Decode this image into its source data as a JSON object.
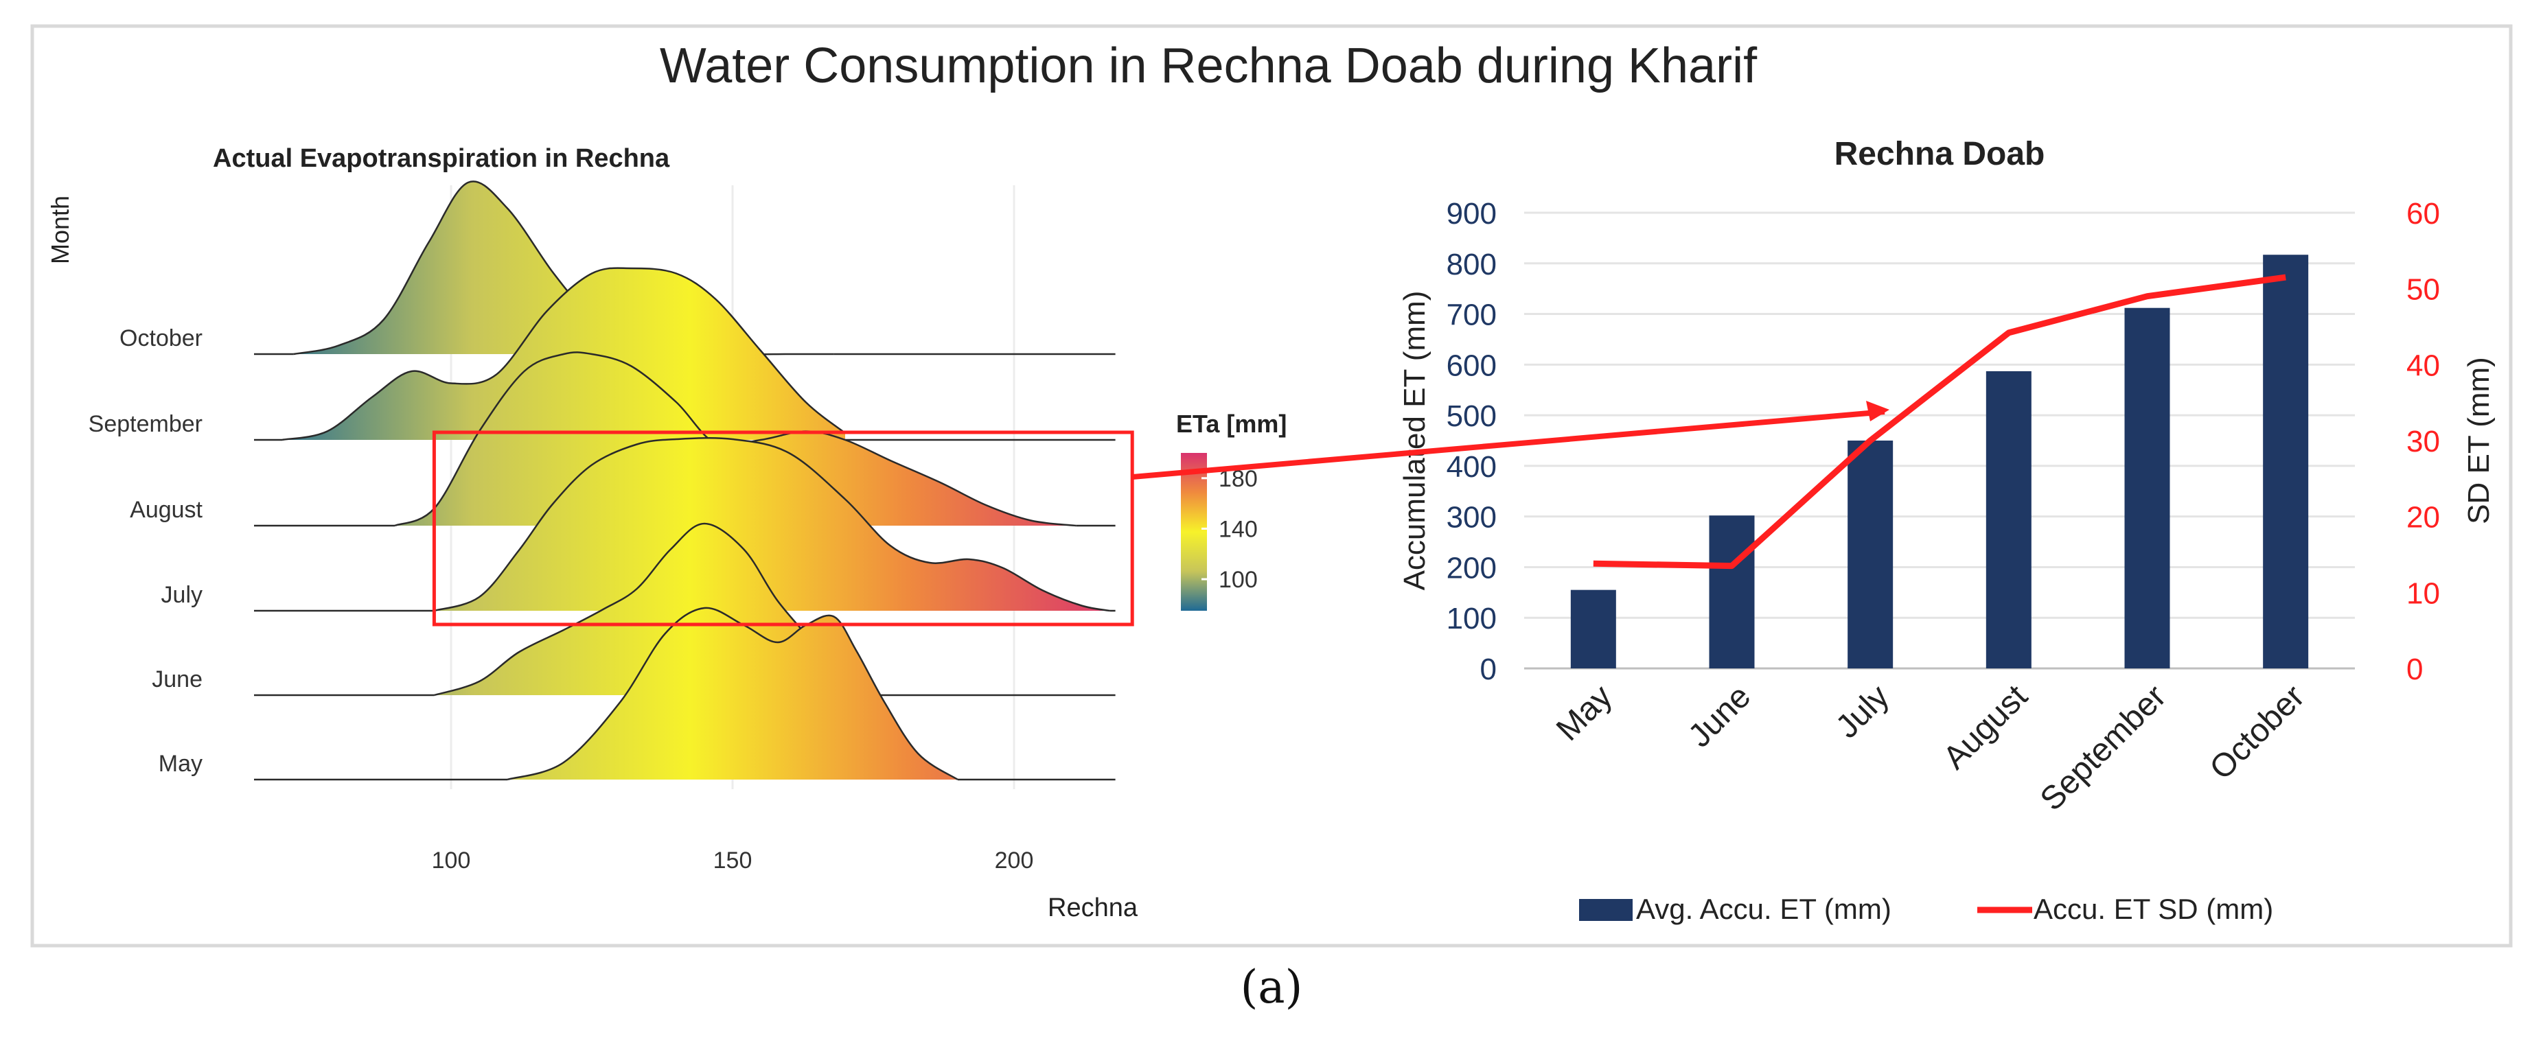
{
  "figure_title": "Water Consumption in Rechna Doab during Kharif",
  "caption": "(a)",
  "chart_data": [
    {
      "type": "ridgeline",
      "title": "Actual Evapotranspiration in Rechna",
      "xlabel": "Rechna",
      "ylabel": "Month",
      "xlim": [
        65,
        220
      ],
      "x_ticks": [
        100,
        150,
        200
      ],
      "categories": [
        "May",
        "June",
        "July",
        "August",
        "September",
        "October"
      ],
      "series": [
        {
          "name": "May",
          "x": [
            110,
            120,
            130,
            138,
            145,
            152,
            158,
            163,
            168,
            172,
            177,
            183,
            190
          ],
          "y": [
            0,
            0.1,
            0.45,
            0.85,
            1.0,
            0.9,
            0.8,
            0.9,
            0.95,
            0.75,
            0.45,
            0.15,
            0
          ]
        },
        {
          "name": "June",
          "x": [
            97,
            105,
            112,
            120,
            127,
            133,
            139,
            145,
            152,
            158,
            165,
            170,
            175
          ],
          "y": [
            0,
            0.08,
            0.25,
            0.38,
            0.5,
            0.62,
            0.85,
            1.0,
            0.85,
            0.55,
            0.28,
            0.07,
            0
          ]
        },
        {
          "name": "July",
          "x": [
            97,
            105,
            112,
            118,
            125,
            133,
            140,
            150,
            160,
            170,
            178,
            185,
            192,
            198,
            205,
            212,
            217
          ],
          "y": [
            0,
            0.08,
            0.35,
            0.62,
            0.85,
            0.97,
            1.0,
            1.0,
            0.92,
            0.65,
            0.38,
            0.28,
            0.3,
            0.25,
            0.12,
            0.03,
            0
          ]
        },
        {
          "name": "August",
          "x": [
            90,
            97,
            105,
            113,
            120,
            125,
            132,
            140,
            147,
            155,
            163,
            170,
            178,
            187,
            195,
            203,
            211
          ],
          "y": [
            0,
            0.1,
            0.55,
            0.9,
            1.0,
            1.0,
            0.93,
            0.72,
            0.48,
            0.5,
            0.55,
            0.5,
            0.38,
            0.25,
            0.12,
            0.03,
            0
          ]
        },
        {
          "name": "September",
          "x": [
            70,
            78,
            86,
            93,
            100,
            108,
            117,
            125,
            132,
            140,
            147,
            155,
            163,
            170
          ],
          "y": [
            0,
            0.05,
            0.25,
            0.4,
            0.33,
            0.38,
            0.75,
            0.97,
            1.0,
            0.97,
            0.82,
            0.52,
            0.22,
            0.04
          ]
        },
        {
          "name": "October",
          "x": [
            72,
            80,
            88,
            96,
            103,
            110,
            118,
            124,
            130,
            137,
            145,
            152,
            160,
            168
          ],
          "y": [
            0,
            0.05,
            0.2,
            0.65,
            1.0,
            0.85,
            0.48,
            0.25,
            0.12,
            0.06,
            0.02,
            0,
            0,
            0
          ]
        }
      ],
      "legend": {
        "title": "ETa [mm]",
        "ticks": [
          100,
          140,
          180
        ],
        "range": [
          75,
          200
        ],
        "colors": [
          "#1f6a95",
          "#c7c55a",
          "#f7f22a",
          "#ef8a3e",
          "#d9336e"
        ]
      },
      "highlight": {
        "x_range": [
          97,
          221
        ],
        "categories": [
          "August",
          "July"
        ],
        "color": "#ff2222"
      }
    },
    {
      "type": "bar+line",
      "title": "Rechna Doab",
      "categories": [
        "May",
        "June",
        "July",
        "August",
        "September",
        "October"
      ],
      "series": [
        {
          "name": "Avg. Accu. ET (mm)",
          "type": "bar",
          "axis": "left",
          "values": [
            155,
            302,
            450,
            587,
            712,
            817
          ],
          "color": "#1f3864"
        },
        {
          "name": "Accu. ET SD (mm)",
          "type": "line",
          "axis": "right",
          "values": [
            13.8,
            13.5,
            30.0,
            44.2,
            49.0,
            51.5
          ],
          "color": "#ff2020"
        }
      ],
      "y_left": {
        "label": "Accumulated ET (mm)",
        "range": [
          0,
          900
        ],
        "ticks": [
          0,
          100,
          200,
          300,
          400,
          500,
          600,
          700,
          800,
          900
        ],
        "color": "#1f3864"
      },
      "y_right": {
        "label": "SD ET (mm)",
        "range": [
          0,
          60
        ],
        "ticks": [
          0,
          10,
          20,
          30,
          40,
          50,
          60
        ],
        "color": "#ff2020"
      },
      "grid": true,
      "legend_position": "bottom"
    }
  ]
}
